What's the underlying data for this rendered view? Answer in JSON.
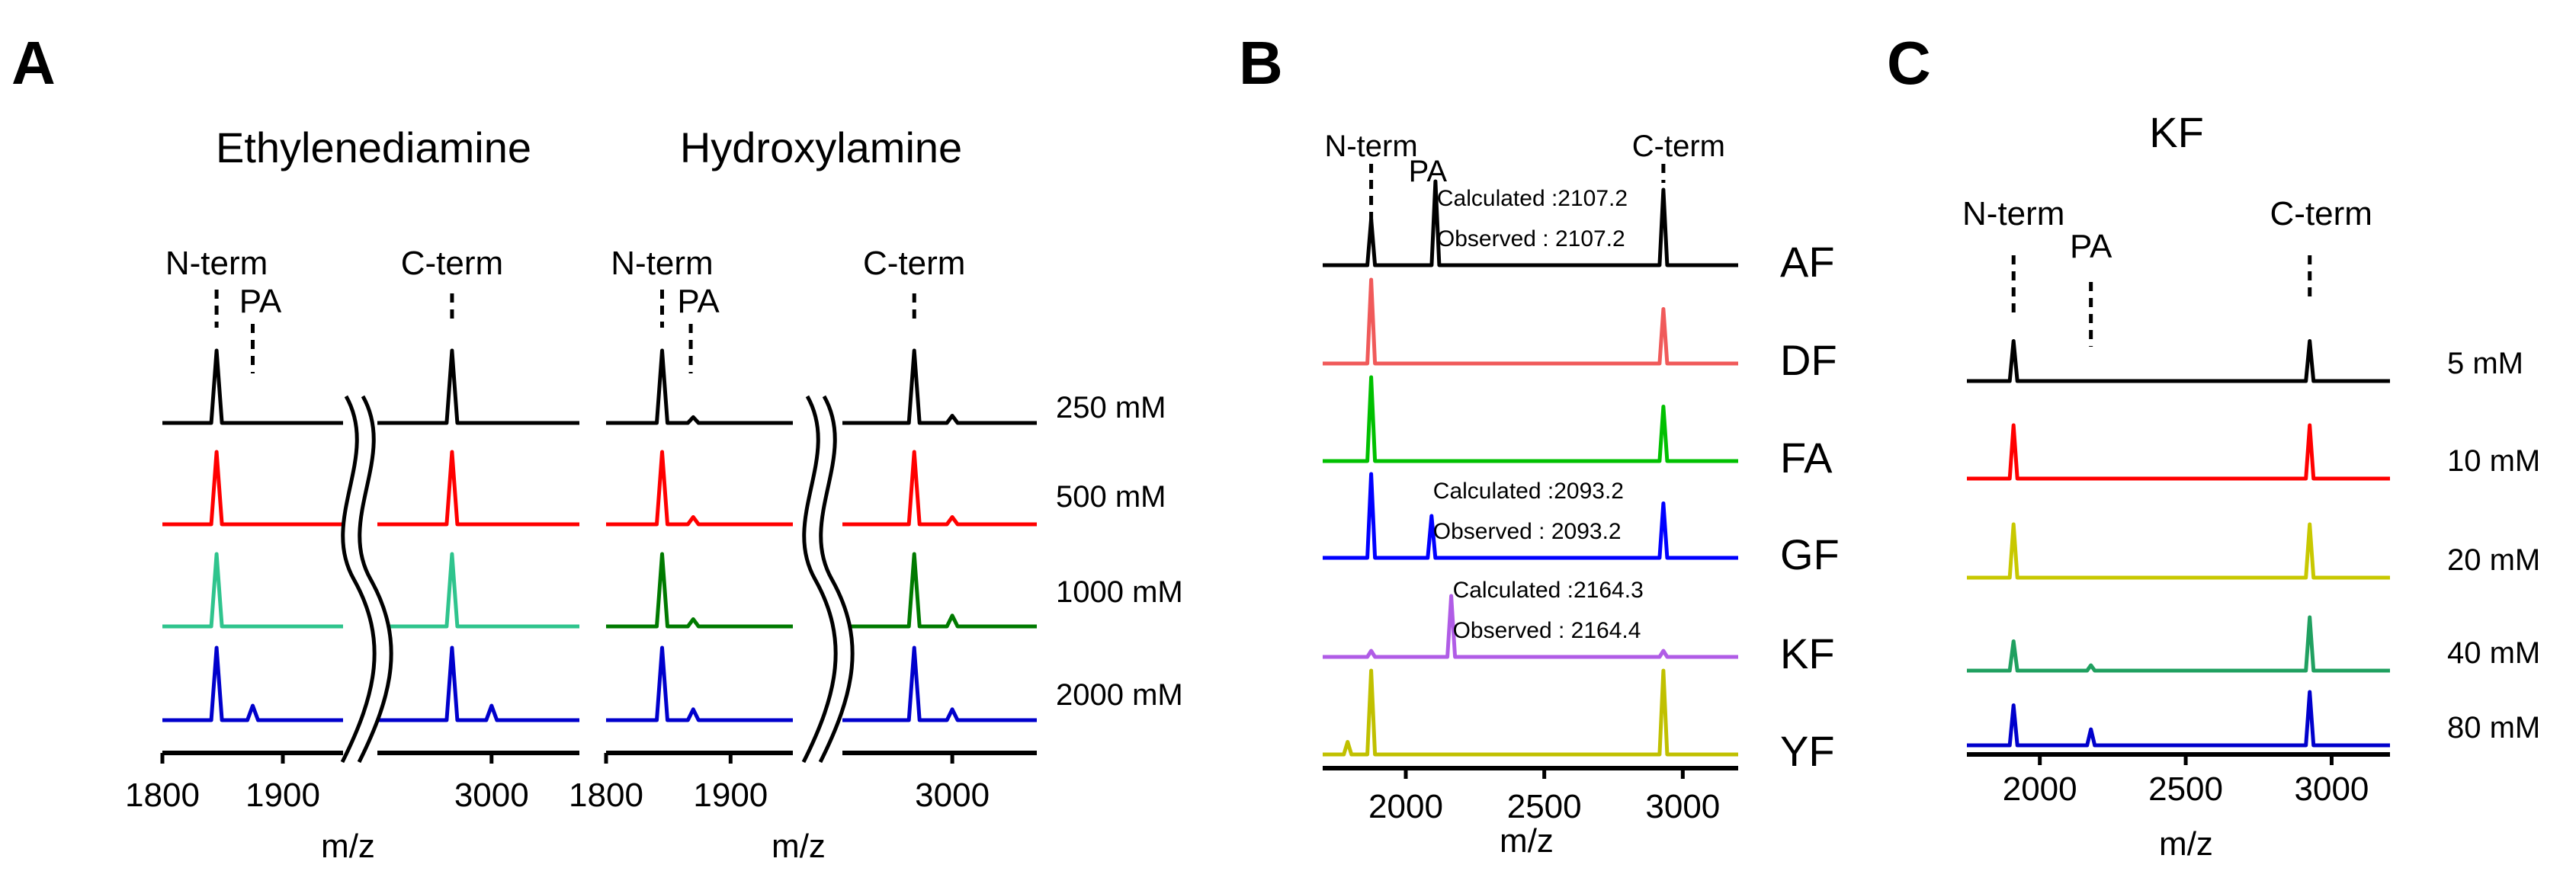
{
  "chart_data": [
    {
      "panel": "A",
      "type": "line",
      "title": "Ethylenediamine",
      "xlabel": "m/z",
      "segments": [
        {
          "xlim": [
            1800,
            1950
          ],
          "ticks": [
            1800,
            1900
          ],
          "tick_labels": [
            "1800",
            "1900"
          ]
        },
        {
          "xlim": [
            2870,
            3100
          ],
          "ticks": [
            3000
          ],
          "tick_labels": [
            "3000"
          ]
        }
      ],
      "annotations": [
        {
          "text": "N-term",
          "x": 1845,
          "segment": 0
        },
        {
          "text": "PA",
          "x": 1875,
          "segment": 0
        },
        {
          "text": "C-term",
          "x": 2955,
          "segment": 1
        }
      ],
      "series": [
        {
          "name": "250 mM",
          "color": "#000000",
          "peaks": [
            {
              "x": 1845,
              "h": 1.0
            },
            {
              "x": 2955,
              "h": 1.0
            }
          ]
        },
        {
          "name": "500 mM",
          "color": "#ff0000",
          "peaks": [
            {
              "x": 1845,
              "h": 1.0
            },
            {
              "x": 2955,
              "h": 1.0
            }
          ]
        },
        {
          "name": "1000 mM",
          "color": "#2fc48d",
          "peaks": [
            {
              "x": 1845,
              "h": 1.0
            },
            {
              "x": 2955,
              "h": 1.0
            }
          ]
        },
        {
          "name": "2000 mM",
          "color": "#0000cc",
          "peaks": [
            {
              "x": 1845,
              "h": 1.0
            },
            {
              "x": 1875,
              "h": 0.2
            },
            {
              "x": 2955,
              "h": 1.0
            },
            {
              "x": 3000,
              "h": 0.2
            }
          ]
        }
      ]
    },
    {
      "panel": "A",
      "type": "line",
      "title": "Hydroxylamine",
      "xlabel": "m/z",
      "segments": [
        {
          "xlim": [
            1800,
            1950
          ],
          "ticks": [
            1800,
            1900
          ],
          "tick_labels": [
            "1800",
            "1900"
          ]
        },
        {
          "xlim": [
            2870,
            3100
          ],
          "ticks": [
            3000
          ],
          "tick_labels": [
            "3000"
          ]
        }
      ],
      "annotations": [
        {
          "text": "N-term",
          "x": 1845,
          "segment": 0
        },
        {
          "text": "PA",
          "x": 1868,
          "segment": 0
        },
        {
          "text": "C-term",
          "x": 2955,
          "segment": 1
        }
      ],
      "series": [
        {
          "name": "250 mM",
          "color": "#000000",
          "peaks": [
            {
              "x": 1845,
              "h": 1.0
            },
            {
              "x": 1870,
              "h": 0.08
            },
            {
              "x": 2955,
              "h": 1.0
            },
            {
              "x": 3000,
              "h": 0.1
            }
          ]
        },
        {
          "name": "500 mM",
          "color": "#ff0000",
          "peaks": [
            {
              "x": 1845,
              "h": 1.0
            },
            {
              "x": 1870,
              "h": 0.1
            },
            {
              "x": 2955,
              "h": 1.0
            },
            {
              "x": 3000,
              "h": 0.1
            }
          ]
        },
        {
          "name": "1000 mM",
          "color": "#007a00",
          "peaks": [
            {
              "x": 1845,
              "h": 1.0
            },
            {
              "x": 1870,
              "h": 0.1
            },
            {
              "x": 2955,
              "h": 1.0
            },
            {
              "x": 3000,
              "h": 0.15
            }
          ]
        },
        {
          "name": "2000 mM",
          "color": "#0000cc",
          "peaks": [
            {
              "x": 1845,
              "h": 1.0
            },
            {
              "x": 1870,
              "h": 0.15
            },
            {
              "x": 2955,
              "h": 1.0
            },
            {
              "x": 3000,
              "h": 0.15
            }
          ]
        }
      ],
      "row_labels": [
        "250 mM",
        "500 mM",
        "1000 mM",
        "2000 mM"
      ]
    },
    {
      "panel": "B",
      "type": "line",
      "title": "",
      "xlabel": "m/z",
      "xlim": [
        1700,
        3200
      ],
      "ticks": [
        2000,
        2500,
        3000
      ],
      "tick_labels": [
        "2000",
        "2500",
        "3000"
      ],
      "annotations": [
        {
          "text": "N-term",
          "x": 1875
        },
        {
          "text": "PA",
          "x": 2107
        },
        {
          "text": "C-term",
          "x": 2930
        }
      ],
      "series": [
        {
          "name": "AF",
          "color": "#000000",
          "peaks": [
            {
              "x": 1875,
              "h": 0.55
            },
            {
              "x": 2107,
              "h": 1.0
            },
            {
              "x": 2930,
              "h": 0.9
            }
          ],
          "calc": "Calculated :2107.2",
          "obs": "Observed : 2107.2",
          "note_x": 2107
        },
        {
          "name": "DF",
          "color": "#f05a5a",
          "peaks": [
            {
              "x": 1875,
              "h": 1.0
            },
            {
              "x": 2930,
              "h": 0.65
            }
          ]
        },
        {
          "name": "FA",
          "color": "#00c000",
          "peaks": [
            {
              "x": 1875,
              "h": 1.0
            },
            {
              "x": 2930,
              "h": 0.65
            }
          ]
        },
        {
          "name": "GF",
          "color": "#0000ff",
          "peaks": [
            {
              "x": 1875,
              "h": 1.0
            },
            {
              "x": 2093,
              "h": 0.5
            },
            {
              "x": 2930,
              "h": 0.65
            }
          ],
          "calc": "Calculated :2093.2",
          "obs": "Observed : 2093.2",
          "note_x": 2093
        },
        {
          "name": "KF",
          "color": "#b05ce6",
          "peaks": [
            {
              "x": 1875,
              "h": 0.1
            },
            {
              "x": 2164,
              "h": 1.0
            },
            {
              "x": 2930,
              "h": 0.1
            }
          ],
          "calc": "Calculated :2164.3",
          "obs": "Observed : 2164.4",
          "note_x": 2164
        },
        {
          "name": "YF",
          "color": "#c0c000",
          "peaks": [
            {
              "x": 1790,
              "h": 0.15
            },
            {
              "x": 1875,
              "h": 1.0
            },
            {
              "x": 2930,
              "h": 1.0
            }
          ]
        }
      ]
    },
    {
      "panel": "C",
      "type": "line",
      "title": "KF",
      "xlabel": "m/z",
      "xlim": [
        1750,
        3200
      ],
      "ticks": [
        2000,
        2500,
        3000
      ],
      "tick_labels": [
        "2000",
        "2500",
        "3000"
      ],
      "annotations": [
        {
          "text": "N-term",
          "x": 1910
        },
        {
          "text": "PA",
          "x": 2175
        },
        {
          "text": "C-term",
          "x": 2925
        }
      ],
      "series": [
        {
          "name": "5 mM",
          "color": "#000000",
          "peaks": [
            {
              "x": 1910,
              "h": 0.75
            },
            {
              "x": 2925,
              "h": 0.75
            }
          ]
        },
        {
          "name": "10 mM",
          "color": "#ff0000",
          "peaks": [
            {
              "x": 1910,
              "h": 1.0
            },
            {
              "x": 2925,
              "h": 1.0
            }
          ]
        },
        {
          "name": "20 mM",
          "color": "#c8c800",
          "peaks": [
            {
              "x": 1910,
              "h": 1.0
            },
            {
              "x": 2925,
              "h": 1.0
            }
          ]
        },
        {
          "name": "40 mM",
          "color": "#20a060",
          "peaks": [
            {
              "x": 1910,
              "h": 0.55
            },
            {
              "x": 2175,
              "h": 0.1
            },
            {
              "x": 2925,
              "h": 1.0
            }
          ]
        },
        {
          "name": "80 mM",
          "color": "#0000cc",
          "peaks": [
            {
              "x": 1910,
              "h": 0.75
            },
            {
              "x": 2175,
              "h": 0.3
            },
            {
              "x": 2925,
              "h": 1.0
            }
          ]
        }
      ]
    }
  ],
  "panels": {
    "a": "A",
    "b": "B",
    "c": "C"
  }
}
